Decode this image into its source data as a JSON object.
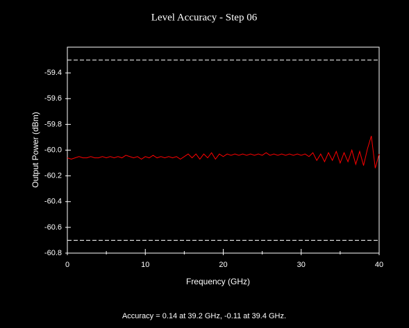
{
  "chart_data": {
    "type": "line",
    "title": "Level Accuracy - Step 06",
    "x_label": "Frequency (GHz)",
    "y_label": "Output Power (dBm)",
    "annotation": "Accuracy = 0.14 at 39.2 GHz, -0.11 at 39.4 GHz.",
    "color": "#ff0000",
    "limit_color": "#ffffff",
    "limit_lines": [
      -59.3,
      -60.7
    ],
    "xlim": [
      0,
      40
    ],
    "xticks": [
      0,
      10,
      20,
      30,
      40
    ],
    "xminor_ticks": [
      5,
      15,
      25,
      35
    ],
    "ylim": [
      -60.8,
      -59.2
    ],
    "yticks": [
      -59.4,
      -59.6,
      -59.8,
      {
        "value": -60.0,
        "label": "-60.0"
      },
      -60.2,
      -60.4,
      -60.6,
      -60.8
    ],
    "x": [
      0,
      0.5,
      1,
      1.5,
      2,
      2.5,
      3,
      3.5,
      4,
      4.5,
      5,
      5.5,
      6,
      6.5,
      7,
      7.5,
      8,
      8.5,
      9,
      9.5,
      10,
      10.5,
      11,
      11.5,
      12,
      12.5,
      13,
      13.5,
      14,
      14.5,
      15,
      15.5,
      16,
      16.5,
      17,
      17.5,
      18,
      18.5,
      19,
      19.5,
      20,
      20.5,
      21,
      21.5,
      22,
      22.5,
      23,
      23.5,
      24,
      24.5,
      25,
      25.5,
      26,
      26.5,
      27,
      27.5,
      28,
      28.5,
      29,
      29.5,
      30,
      30.5,
      31,
      31.5,
      32,
      32.5,
      33,
      33.5,
      34,
      34.5,
      35,
      35.5,
      36,
      36.5,
      37,
      37.5,
      38,
      38.5,
      39,
      39.5,
      40
    ],
    "values": [
      -60.06,
      -60.07,
      -60.06,
      -60.05,
      -60.06,
      -60.06,
      -60.05,
      -60.06,
      -60.06,
      -60.05,
      -60.06,
      -60.05,
      -60.06,
      -60.05,
      -60.06,
      -60.04,
      -60.05,
      -60.06,
      -60.05,
      -60.07,
      -60.05,
      -60.06,
      -60.04,
      -60.06,
      -60.05,
      -60.06,
      -60.05,
      -60.06,
      -60.05,
      -60.07,
      -60.05,
      -60.03,
      -60.06,
      -60.03,
      -60.07,
      -60.03,
      -60.06,
      -60.02,
      -60.07,
      -60.03,
      -60.05,
      -60.03,
      -60.04,
      -60.03,
      -60.04,
      -60.03,
      -60.04,
      -60.03,
      -60.04,
      -60.03,
      -60.04,
      -60.02,
      -60.04,
      -60.03,
      -60.04,
      -60.03,
      -60.04,
      -60.03,
      -60.04,
      -60.03,
      -60.04,
      -60.03,
      -60.05,
      -60.02,
      -60.08,
      -60.03,
      -60.09,
      -60.02,
      -60.08,
      -60.01,
      -60.1,
      -60.02,
      -60.09,
      -60.0,
      -60.11,
      -60.01,
      -60.12,
      -59.99,
      -59.89,
      -60.14,
      -60.03
    ]
  }
}
